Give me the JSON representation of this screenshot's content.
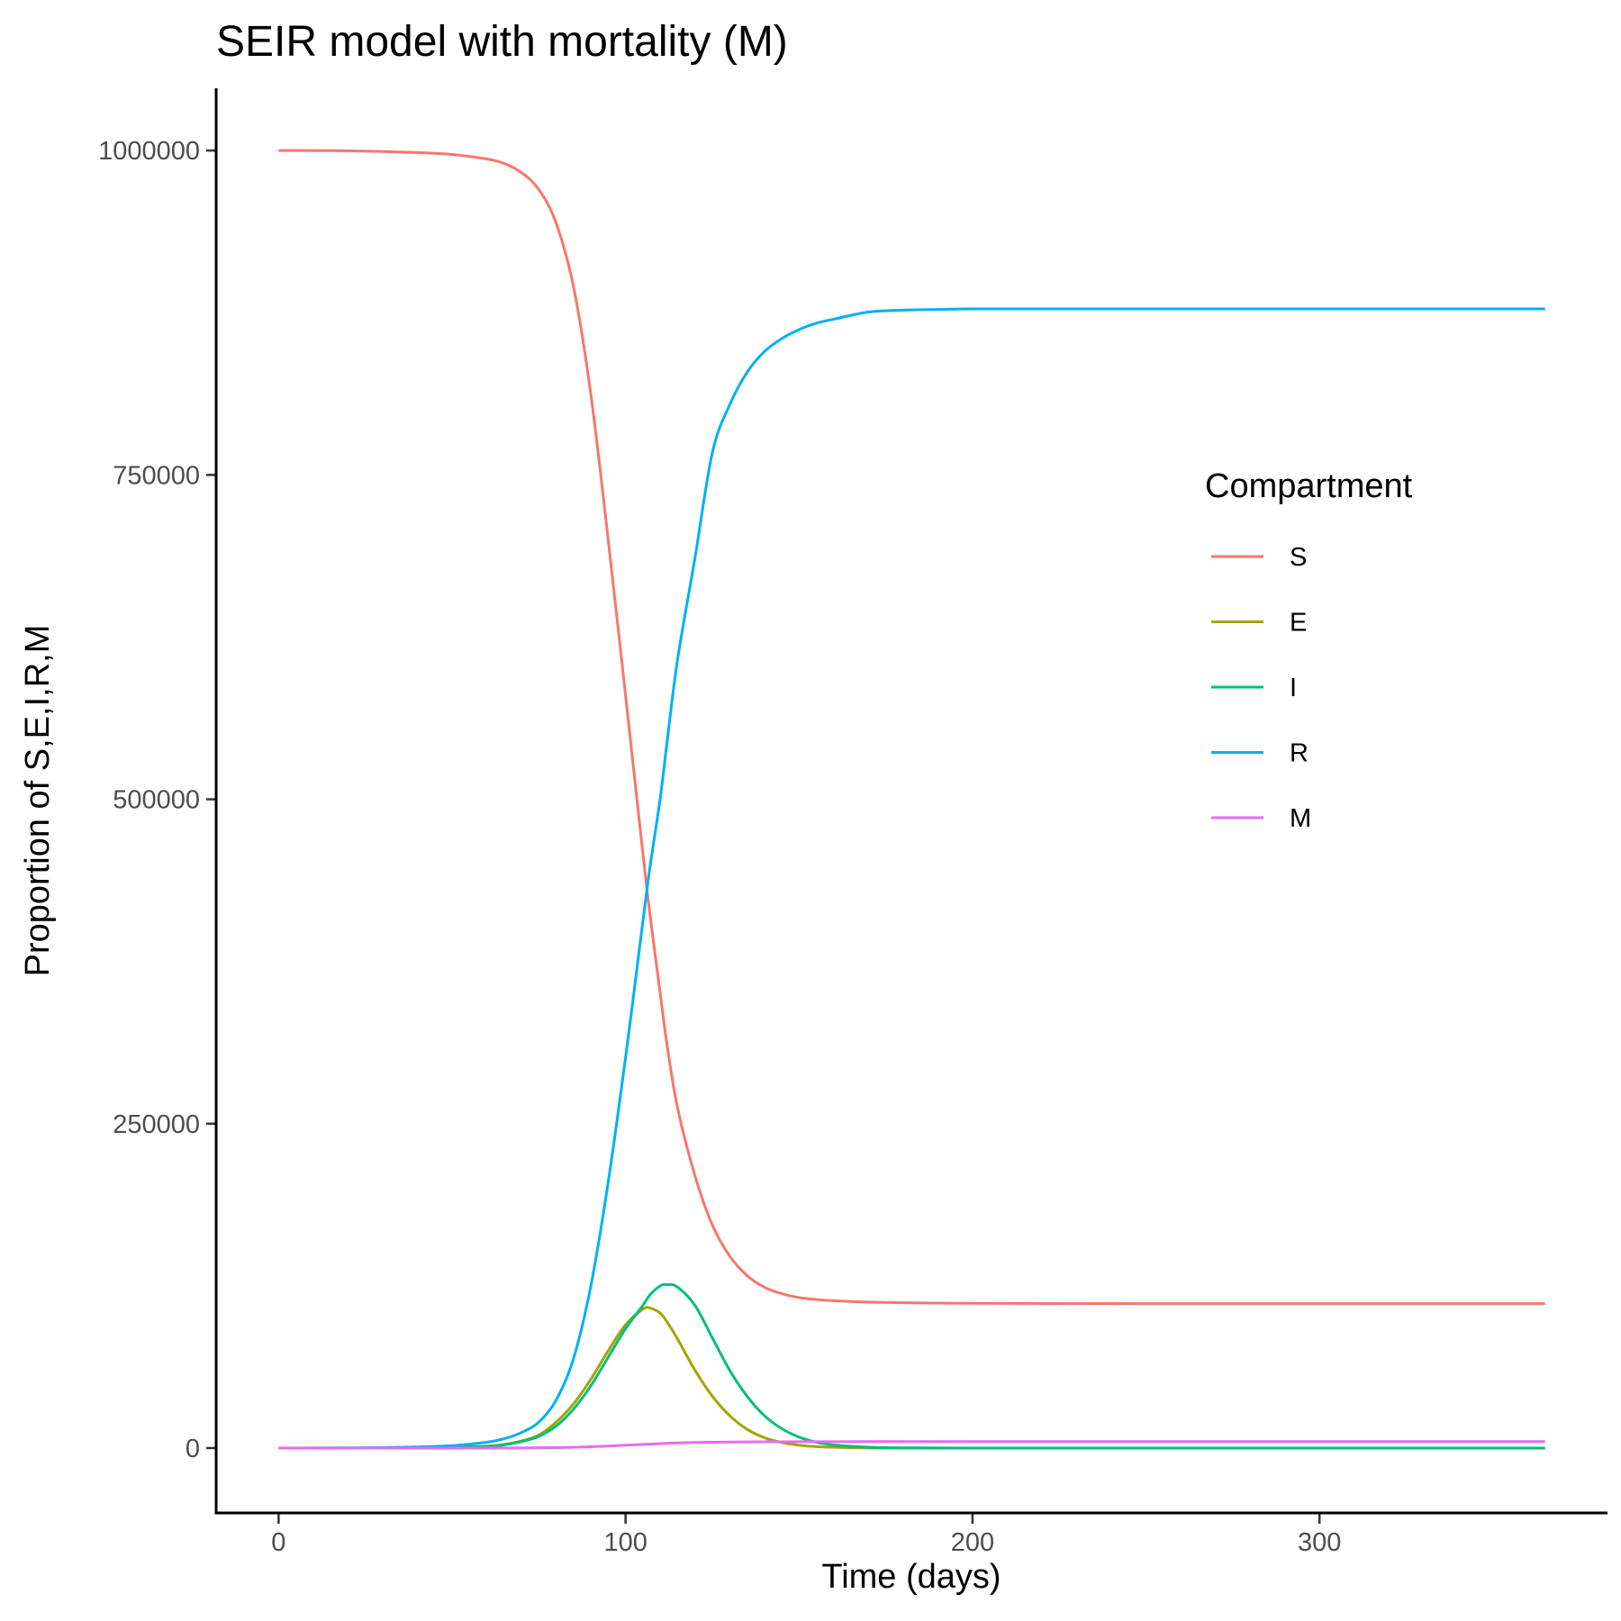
{
  "chart_data": {
    "type": "line",
    "title": "SEIR model with mortality (M)",
    "xlabel": "Time (days)",
    "ylabel": "Proportion of S,E,I,R,M",
    "xlim": [
      -18,
      383
    ],
    "ylim": [
      -50000,
      1048000
    ],
    "x_ticks": [
      0,
      100,
      200,
      300
    ],
    "y_ticks": [
      0,
      250000,
      500000,
      750000,
      1000000
    ],
    "x_tick_labels": [
      "0",
      "100",
      "200",
      "300"
    ],
    "y_tick_labels": [
      "0",
      "250000",
      "500000",
      "750000",
      "1000000"
    ],
    "grid": false,
    "legend": {
      "title": "Compartment",
      "placement": "right"
    },
    "x": [
      0,
      20,
      40,
      50,
      60,
      65,
      70,
      75,
      80,
      85,
      90,
      95,
      100,
      105,
      107,
      110,
      112,
      115,
      120,
      125,
      130,
      135,
      140,
      145,
      150,
      155,
      160,
      170,
      180,
      190,
      200,
      220,
      250,
      300,
      365
    ],
    "series": [
      {
        "name": "S",
        "color": "#F8766D",
        "values": [
          1000000,
          999800,
          998500,
          997000,
          993500,
          990000,
          983000,
          970000,
          944000,
          895000,
          812000,
          700000,
          580000,
          458000,
          412000,
          350000,
          310000,
          262000,
          210000,
          172000,
          148000,
          133000,
          124000,
          119000,
          116000,
          114500,
          113500,
          112500,
          112000,
          111700,
          111500,
          111400,
          111300,
          111300,
          111300
        ]
      },
      {
        "name": "E",
        "color": "#A3A500",
        "values": [
          0,
          50,
          250,
          600,
          1500,
          2800,
          5500,
          10000,
          20000,
          34000,
          53000,
          75000,
          95000,
          107000,
          108000,
          104000,
          97000,
          84000,
          60000,
          40000,
          25000,
          14500,
          8000,
          4300,
          2200,
          1100,
          550,
          150,
          40,
          10,
          0,
          0,
          0,
          0,
          0
        ]
      },
      {
        "name": "I",
        "color": "#00BF7D",
        "values": [
          0,
          30,
          200,
          500,
          1300,
          2500,
          5000,
          9000,
          17000,
          30000,
          48000,
          70000,
          92000,
          110000,
          118000,
          125000,
          126000,
          124000,
          110000,
          85000,
          60000,
          40000,
          25000,
          15000,
          8500,
          4500,
          2400,
          650,
          170,
          45,
          10,
          0,
          0,
          0,
          0
        ]
      },
      {
        "name": "R",
        "color": "#00B0F6",
        "values": [
          0,
          100,
          800,
          1900,
          4500,
          7200,
          12000,
          20000,
          37000,
          69000,
          125000,
          205000,
          301000,
          406000,
          447000,
          501000,
          545000,
          608000,
          686000,
          767000,
          804000,
          829000,
          845000,
          855000,
          862000,
          867000,
          870000,
          875500,
          877000,
          877500,
          878000,
          878000,
          878000,
          878000,
          878000
        ]
      },
      {
        "name": "M",
        "color": "#E76BF3",
        "values": [
          0,
          0,
          0,
          0,
          50,
          80,
          120,
          200,
          350,
          600,
          1000,
          1500,
          2200,
          2800,
          3000,
          3400,
          3700,
          4000,
          4300,
          4500,
          4650,
          4750,
          4800,
          4850,
          4900,
          4920,
          4940,
          4960,
          4970,
          4980,
          4990,
          5000,
          5000,
          5000,
          5000
        ]
      }
    ]
  }
}
